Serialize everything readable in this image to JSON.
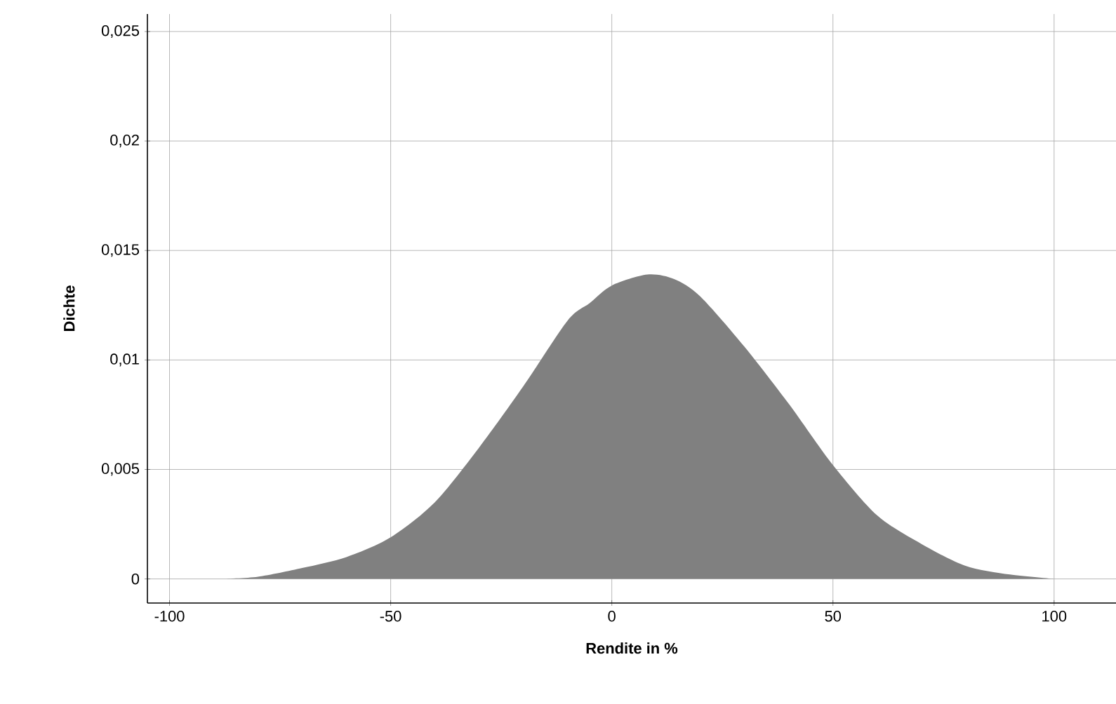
{
  "chart_data": {
    "type": "area",
    "xlabel": "Rendite in %",
    "ylabel": "Dichte",
    "color": "#808080",
    "x": [
      -88,
      -80,
      -70,
      -60,
      -50,
      -40,
      -30,
      -20,
      -10,
      -5,
      0,
      8,
      14,
      20,
      30,
      40,
      50,
      60,
      70,
      80,
      90,
      100
    ],
    "values": [
      0,
      0.0001,
      0.0005,
      0.001,
      0.0019,
      0.0035,
      0.006,
      0.0088,
      0.0118,
      0.0126,
      0.0134,
      0.0139,
      0.0137,
      0.0129,
      0.0106,
      0.008,
      0.0052,
      0.0029,
      0.0016,
      0.0006,
      0.0002,
      0
    ],
    "xlim": [
      -105,
      114
    ],
    "ylim": [
      -0.0011,
      0.0258
    ],
    "xticks": [
      -100,
      -50,
      0,
      50,
      100
    ],
    "yticks": [
      {
        "value": 0,
        "label": "0"
      },
      {
        "value": 0.005,
        "label": "0,005"
      },
      {
        "value": 0.01,
        "label": "0,01"
      },
      {
        "value": 0.015,
        "label": "0,015"
      },
      {
        "value": 0.02,
        "label": "0,02"
      },
      {
        "value": 0.025,
        "label": "0,025"
      }
    ],
    "grid": true
  }
}
